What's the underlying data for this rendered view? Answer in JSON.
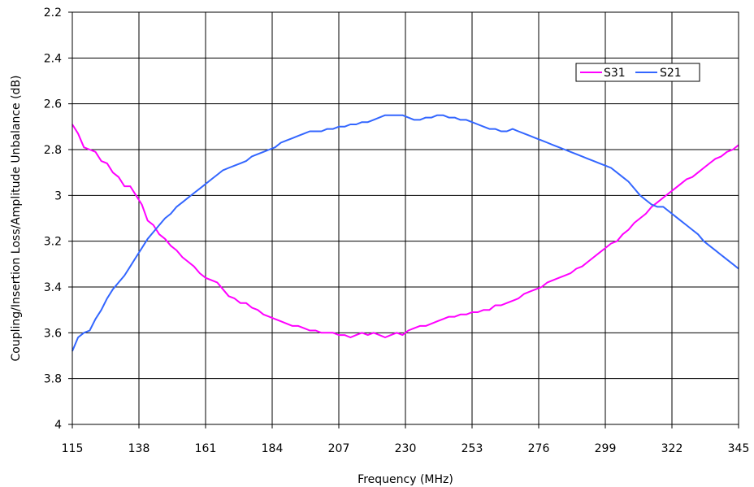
{
  "chart_data": {
    "type": "line",
    "title": "",
    "xlabel": "Frequency (MHz)",
    "ylabel": "Coupling/Insertion Loss/Amplitude Unbalance (dB)",
    "xlim": [
      115,
      345
    ],
    "ylim": [
      2.2,
      4
    ],
    "y_inverted": true,
    "x_ticks": [
      115,
      138,
      161,
      184,
      207,
      230,
      253,
      276,
      299,
      322,
      345
    ],
    "y_ticks": [
      "2.2",
      "2.4",
      "2.6",
      "2.8",
      "3",
      "3.2",
      "3.4",
      "3.6",
      "3.8",
      "4"
    ],
    "grid": true,
    "legend_position": "top-right",
    "series": [
      {
        "name": "S31",
        "color": "#ff00ff",
        "x": [
          115,
          117,
          119,
          121,
          123,
          125,
          127,
          129,
          131,
          133,
          135,
          137,
          139,
          141,
          143,
          145,
          147,
          149,
          151,
          153,
          155,
          157,
          159,
          161,
          163,
          165,
          167,
          169,
          171,
          173,
          175,
          177,
          179,
          181,
          183,
          185,
          187,
          189,
          191,
          193,
          195,
          197,
          199,
          201,
          203,
          205,
          207,
          209,
          211,
          213,
          215,
          217,
          219,
          221,
          223,
          225,
          227,
          229,
          231,
          233,
          235,
          237,
          239,
          241,
          243,
          245,
          247,
          249,
          251,
          253,
          255,
          257,
          259,
          261,
          263,
          265,
          267,
          269,
          271,
          273,
          275,
          277,
          279,
          281,
          283,
          285,
          287,
          289,
          291,
          293,
          295,
          297,
          299,
          301,
          303,
          305,
          307,
          309,
          311,
          313,
          315,
          317,
          319,
          321,
          323,
          325,
          327,
          329,
          331,
          333,
          335,
          337,
          339,
          341,
          343,
          345
        ],
        "y": [
          2.69,
          2.73,
          2.79,
          2.8,
          2.81,
          2.85,
          2.86,
          2.9,
          2.92,
          2.96,
          2.96,
          3.0,
          3.04,
          3.11,
          3.13,
          3.17,
          3.19,
          3.22,
          3.24,
          3.27,
          3.29,
          3.31,
          3.34,
          3.36,
          3.37,
          3.38,
          3.41,
          3.44,
          3.45,
          3.47,
          3.47,
          3.49,
          3.5,
          3.52,
          3.53,
          3.54,
          3.55,
          3.56,
          3.57,
          3.57,
          3.58,
          3.59,
          3.59,
          3.6,
          3.6,
          3.6,
          3.61,
          3.61,
          3.62,
          3.61,
          3.6,
          3.61,
          3.6,
          3.61,
          3.62,
          3.61,
          3.6,
          3.61,
          3.59,
          3.58,
          3.57,
          3.57,
          3.56,
          3.55,
          3.54,
          3.53,
          3.53,
          3.52,
          3.52,
          3.51,
          3.51,
          3.5,
          3.5,
          3.48,
          3.48,
          3.47,
          3.46,
          3.45,
          3.43,
          3.42,
          3.41,
          3.4,
          3.38,
          3.37,
          3.36,
          3.35,
          3.34,
          3.32,
          3.31,
          3.29,
          3.27,
          3.25,
          3.23,
          3.21,
          3.2,
          3.17,
          3.15,
          3.12,
          3.1,
          3.08,
          3.05,
          3.03,
          3.01,
          2.99,
          2.97,
          2.95,
          2.93,
          2.92,
          2.9,
          2.88,
          2.86,
          2.84,
          2.83,
          2.81,
          2.8,
          2.78
        ]
      },
      {
        "name": "S21",
        "color": "#3366ff",
        "x": [
          115,
          117,
          119,
          121,
          123,
          125,
          127,
          129,
          131,
          133,
          135,
          137,
          139,
          141,
          143,
          145,
          147,
          149,
          151,
          153,
          155,
          157,
          159,
          161,
          163,
          165,
          167,
          169,
          171,
          173,
          175,
          177,
          179,
          181,
          183,
          185,
          187,
          189,
          191,
          193,
          195,
          197,
          199,
          201,
          203,
          205,
          207,
          209,
          211,
          213,
          215,
          217,
          219,
          221,
          223,
          225,
          227,
          229,
          231,
          233,
          235,
          237,
          239,
          241,
          243,
          245,
          247,
          249,
          251,
          253,
          255,
          257,
          259,
          261,
          263,
          265,
          267,
          269,
          271,
          273,
          275,
          277,
          279,
          281,
          283,
          285,
          287,
          289,
          291,
          293,
          295,
          297,
          299,
          301,
          303,
          305,
          307,
          309,
          311,
          313,
          315,
          317,
          319,
          321,
          323,
          325,
          327,
          329,
          331,
          333,
          335,
          337,
          339,
          341,
          343,
          345
        ],
        "y": [
          3.68,
          3.62,
          3.6,
          3.59,
          3.54,
          3.5,
          3.45,
          3.41,
          3.38,
          3.35,
          3.31,
          3.27,
          3.23,
          3.19,
          3.16,
          3.13,
          3.1,
          3.08,
          3.05,
          3.03,
          3.01,
          2.99,
          2.97,
          2.95,
          2.93,
          2.91,
          2.89,
          2.88,
          2.87,
          2.86,
          2.85,
          2.83,
          2.82,
          2.81,
          2.8,
          2.79,
          2.77,
          2.76,
          2.75,
          2.74,
          2.73,
          2.72,
          2.72,
          2.72,
          2.71,
          2.71,
          2.7,
          2.7,
          2.69,
          2.69,
          2.68,
          2.68,
          2.67,
          2.66,
          2.65,
          2.65,
          2.65,
          2.65,
          2.66,
          2.67,
          2.67,
          2.66,
          2.66,
          2.65,
          2.65,
          2.66,
          2.66,
          2.67,
          2.67,
          2.68,
          2.69,
          2.7,
          2.71,
          2.71,
          2.72,
          2.72,
          2.71,
          2.72,
          2.73,
          2.74,
          2.75,
          2.76,
          2.77,
          2.78,
          2.79,
          2.8,
          2.81,
          2.82,
          2.83,
          2.84,
          2.85,
          2.86,
          2.87,
          2.88,
          2.9,
          2.92,
          2.94,
          2.97,
          3.0,
          3.02,
          3.04,
          3.05,
          3.05,
          3.07,
          3.09,
          3.11,
          3.13,
          3.15,
          3.17,
          3.2,
          3.22,
          3.24,
          3.26,
          3.28,
          3.3,
          3.32
        ]
      }
    ]
  }
}
